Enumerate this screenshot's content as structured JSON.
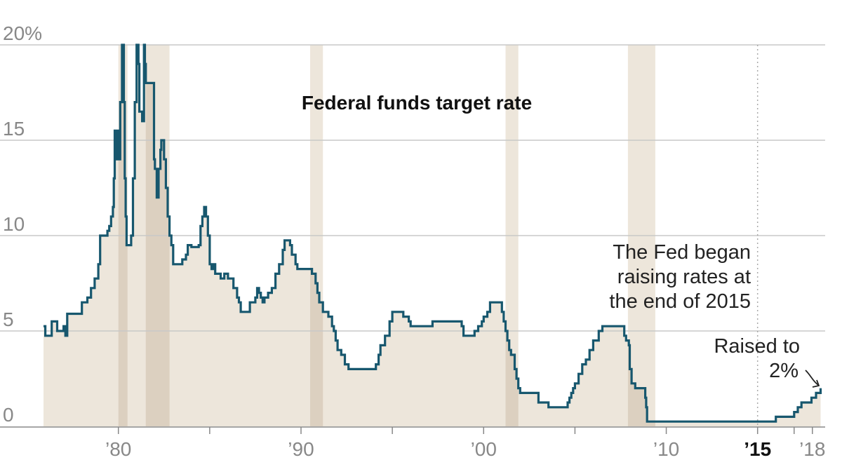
{
  "chart_data": {
    "type": "line",
    "title": "Federal funds target rate",
    "x_unit": "year",
    "y_unit": "percent",
    "xlim": [
      1975.9,
      2018.7
    ],
    "ylim": [
      0,
      20
    ],
    "grid": true,
    "y_ticks": [
      {
        "value": 0,
        "label": "0"
      },
      {
        "value": 5,
        "label": "5"
      },
      {
        "value": 10,
        "label": "10"
      },
      {
        "value": 15,
        "label": "15"
      },
      {
        "value": 20,
        "label": "20%"
      }
    ],
    "x_ticks": [
      {
        "value": 1980,
        "label": "’80"
      },
      {
        "value": 1990,
        "label": "’90"
      },
      {
        "value": 2000,
        "label": "’00"
      },
      {
        "value": 2010,
        "label": "’10"
      },
      {
        "value": 2015,
        "label": "’15",
        "bold": true
      },
      {
        "value": 2018,
        "label": "’18"
      }
    ],
    "x_minor_ticks": [
      1985,
      1995,
      2005,
      2017
    ],
    "reference_line_x": 2015,
    "recessions": [
      [
        1980.0,
        1980.5
      ],
      [
        1981.5,
        1982.8
      ],
      [
        1990.5,
        1991.2
      ],
      [
        2001.2,
        2001.9
      ],
      [
        2007.9,
        2009.4
      ]
    ],
    "series": [
      {
        "color": "#17576e",
        "fill": "#ede6db",
        "recession_fill": "#dcd0c0",
        "points": [
          [
            1975.9,
            5.25
          ],
          [
            1976.0,
            4.75
          ],
          [
            1976.3,
            4.75
          ],
          [
            1976.35,
            5.5
          ],
          [
            1976.6,
            5.5
          ],
          [
            1976.65,
            5.0
          ],
          [
            1976.9,
            5.0
          ],
          [
            1977.0,
            5.25
          ],
          [
            1977.1,
            4.75
          ],
          [
            1977.2,
            5.9
          ],
          [
            1977.7,
            5.9
          ],
          [
            1977.9,
            5.9
          ],
          [
            1978.0,
            6.5
          ],
          [
            1978.3,
            6.75
          ],
          [
            1978.5,
            7.25
          ],
          [
            1978.7,
            7.75
          ],
          [
            1978.9,
            8.5
          ],
          [
            1979.0,
            10.0
          ],
          [
            1979.2,
            10.0
          ],
          [
            1979.4,
            10.25
          ],
          [
            1979.5,
            10.5
          ],
          [
            1979.6,
            11.0
          ],
          [
            1979.7,
            11.5
          ],
          [
            1979.75,
            13.0
          ],
          [
            1979.8,
            15.5
          ],
          [
            1979.9,
            14.0
          ],
          [
            1979.95,
            15.5
          ],
          [
            1980.0,
            14.0
          ],
          [
            1980.1,
            17.0
          ],
          [
            1980.2,
            20.0
          ],
          [
            1980.3,
            17.0
          ],
          [
            1980.35,
            13.0
          ],
          [
            1980.4,
            11.0
          ],
          [
            1980.45,
            9.5
          ],
          [
            1980.6,
            9.5
          ],
          [
            1980.7,
            10.0
          ],
          [
            1980.8,
            13.0
          ],
          [
            1980.9,
            17.0
          ],
          [
            1981.0,
            20.0
          ],
          [
            1981.1,
            19.0
          ],
          [
            1981.15,
            16.5
          ],
          [
            1981.3,
            16.0
          ],
          [
            1981.4,
            20.0
          ],
          [
            1981.45,
            19.0
          ],
          [
            1981.5,
            18.0
          ],
          [
            1981.6,
            18.0
          ],
          [
            1981.9,
            18.0
          ],
          [
            1981.95,
            14.0
          ],
          [
            1982.0,
            13.5
          ],
          [
            1982.1,
            12.0
          ],
          [
            1982.2,
            13.5
          ],
          [
            1982.3,
            14.5
          ],
          [
            1982.35,
            15.0
          ],
          [
            1982.5,
            14.0
          ],
          [
            1982.6,
            12.5
          ],
          [
            1982.7,
            11.0
          ],
          [
            1982.8,
            10.0
          ],
          [
            1982.9,
            9.5
          ],
          [
            1983.0,
            8.5
          ],
          [
            1983.4,
            8.5
          ],
          [
            1983.5,
            8.75
          ],
          [
            1983.7,
            9.0
          ],
          [
            1983.8,
            9.5
          ],
          [
            1984.0,
            9.4
          ],
          [
            1984.4,
            9.5
          ],
          [
            1984.5,
            10.5
          ],
          [
            1984.6,
            11.0
          ],
          [
            1984.7,
            11.5
          ],
          [
            1984.8,
            11.0
          ],
          [
            1984.9,
            10.0
          ],
          [
            1985.0,
            8.5
          ],
          [
            1985.1,
            8.25
          ],
          [
            1985.2,
            8.5
          ],
          [
            1985.3,
            8.0
          ],
          [
            1985.5,
            8.0
          ],
          [
            1985.6,
            7.75
          ],
          [
            1985.8,
            8.0
          ],
          [
            1986.0,
            7.75
          ],
          [
            1986.3,
            7.25
          ],
          [
            1986.5,
            6.75
          ],
          [
            1986.6,
            6.5
          ],
          [
            1986.7,
            6.0
          ],
          [
            1987.0,
            6.0
          ],
          [
            1987.2,
            6.5
          ],
          [
            1987.5,
            6.75
          ],
          [
            1987.6,
            7.25
          ],
          [
            1987.7,
            7.0
          ],
          [
            1987.8,
            6.75
          ],
          [
            1987.9,
            6.5
          ],
          [
            1988.0,
            6.75
          ],
          [
            1988.2,
            7.0
          ],
          [
            1988.4,
            7.25
          ],
          [
            1988.6,
            8.0
          ],
          [
            1988.8,
            8.5
          ],
          [
            1989.0,
            9.25
          ],
          [
            1989.1,
            9.75
          ],
          [
            1989.3,
            9.75
          ],
          [
            1989.4,
            9.5
          ],
          [
            1989.5,
            9.0
          ],
          [
            1989.7,
            8.5
          ],
          [
            1989.8,
            8.25
          ],
          [
            1990.0,
            8.25
          ],
          [
            1990.4,
            8.25
          ],
          [
            1990.6,
            8.0
          ],
          [
            1990.8,
            7.5
          ],
          [
            1990.9,
            7.0
          ],
          [
            1991.0,
            6.5
          ],
          [
            1991.2,
            6.0
          ],
          [
            1991.5,
            5.75
          ],
          [
            1991.7,
            5.25
          ],
          [
            1991.8,
            5.0
          ],
          [
            1991.9,
            4.5
          ],
          [
            1992.0,
            4.0
          ],
          [
            1992.2,
            3.75
          ],
          [
            1992.4,
            3.25
          ],
          [
            1992.6,
            3.0
          ],
          [
            1993.0,
            3.0
          ],
          [
            1993.5,
            3.0
          ],
          [
            1994.0,
            3.0
          ],
          [
            1994.1,
            3.25
          ],
          [
            1994.25,
            3.75
          ],
          [
            1994.35,
            4.25
          ],
          [
            1994.6,
            4.75
          ],
          [
            1994.85,
            5.5
          ],
          [
            1995.0,
            6.0
          ],
          [
            1995.5,
            6.0
          ],
          [
            1995.6,
            5.75
          ],
          [
            1995.9,
            5.5
          ],
          [
            1996.0,
            5.25
          ],
          [
            1997.0,
            5.25
          ],
          [
            1997.2,
            5.5
          ],
          [
            1998.0,
            5.5
          ],
          [
            1998.7,
            5.5
          ],
          [
            1998.8,
            5.25
          ],
          [
            1998.9,
            4.75
          ],
          [
            1999.4,
            4.75
          ],
          [
            1999.5,
            5.0
          ],
          [
            1999.7,
            5.25
          ],
          [
            1999.9,
            5.5
          ],
          [
            2000.0,
            5.75
          ],
          [
            2000.2,
            6.0
          ],
          [
            2000.35,
            6.5
          ],
          [
            2000.9,
            6.5
          ],
          [
            2001.0,
            6.0
          ],
          [
            2001.1,
            5.5
          ],
          [
            2001.2,
            5.0
          ],
          [
            2001.3,
            4.5
          ],
          [
            2001.4,
            4.0
          ],
          [
            2001.5,
            3.75
          ],
          [
            2001.7,
            3.0
          ],
          [
            2001.8,
            2.5
          ],
          [
            2001.9,
            2.0
          ],
          [
            2002.0,
            1.75
          ],
          [
            2002.9,
            1.75
          ],
          [
            2003.0,
            1.25
          ],
          [
            2003.5,
            1.25
          ],
          [
            2003.55,
            1.0
          ],
          [
            2004.5,
            1.0
          ],
          [
            2004.6,
            1.25
          ],
          [
            2004.7,
            1.5
          ],
          [
            2004.8,
            1.75
          ],
          [
            2004.9,
            2.0
          ],
          [
            2005.0,
            2.25
          ],
          [
            2005.2,
            2.75
          ],
          [
            2005.4,
            3.25
          ],
          [
            2005.6,
            3.5
          ],
          [
            2005.8,
            4.0
          ],
          [
            2006.0,
            4.5
          ],
          [
            2006.3,
            5.0
          ],
          [
            2006.5,
            5.25
          ],
          [
            2007.6,
            5.25
          ],
          [
            2007.7,
            4.75
          ],
          [
            2007.8,
            4.5
          ],
          [
            2007.95,
            4.25
          ],
          [
            2008.0,
            3.0
          ],
          [
            2008.1,
            2.25
          ],
          [
            2008.3,
            2.0
          ],
          [
            2008.8,
            2.0
          ],
          [
            2008.85,
            1.5
          ],
          [
            2008.9,
            1.0
          ],
          [
            2008.95,
            0.25
          ],
          [
            2015.9,
            0.25
          ],
          [
            2016.0,
            0.5
          ],
          [
            2016.9,
            0.5
          ],
          [
            2017.0,
            0.75
          ],
          [
            2017.2,
            1.0
          ],
          [
            2017.4,
            1.25
          ],
          [
            2017.95,
            1.5
          ],
          [
            2018.2,
            1.75
          ],
          [
            2018.45,
            2.0
          ]
        ]
      }
    ],
    "annotations": [
      {
        "lines": [
          "The Fed began",
          "raising rates at",
          "the end of 2015"
        ]
      },
      {
        "lines": [
          "Raised to",
          "2%"
        ]
      }
    ]
  }
}
